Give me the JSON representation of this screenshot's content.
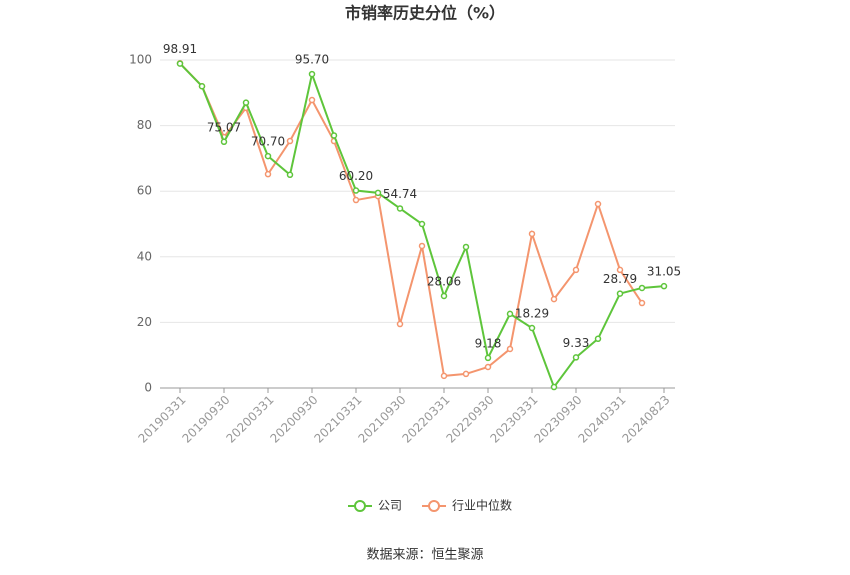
{
  "chart_data": {
    "type": "line",
    "title": "市销率历史分位（%）",
    "source": "数据来源：恒生聚源",
    "categories": [
      "20190331",
      null,
      "20190930",
      null,
      "20200331",
      null,
      "20200930",
      null,
      "20210331",
      null,
      "20210930",
      null,
      "20220331",
      null,
      "20220930",
      null,
      "20230331",
      null,
      "20230930",
      null,
      "20240331",
      null,
      "20240823"
    ],
    "series": [
      {
        "name": "公司",
        "color": "#5ec53b",
        "values": [
          98.91,
          92,
          75.07,
          87,
          70.7,
          65,
          95.7,
          77,
          60.2,
          59.5,
          54.74,
          50,
          28.06,
          43,
          9.18,
          22.6,
          18.29,
          0.3,
          9.33,
          15,
          28.79,
          30.5,
          31.05
        ],
        "value_labels": [
          "98.91",
          null,
          "75.07",
          null,
          "70.70",
          null,
          "95.70",
          null,
          "60.20",
          null,
          "54.74",
          null,
          "28.06",
          null,
          "9.18",
          null,
          "18.29",
          null,
          "9.33",
          null,
          "28.79",
          null,
          "31.05"
        ]
      },
      {
        "name": "行业中位数",
        "color": "#f4956e",
        "values": [
          99,
          92,
          76.5,
          85.4,
          65.2,
          75.3,
          87.8,
          75.3,
          57.3,
          58.5,
          19.5,
          43.3,
          3.7,
          4.3,
          6.4,
          11.9,
          47,
          27.1,
          36,
          56.1,
          36,
          25.9,
          null
        ]
      }
    ],
    "ylim": [
      0,
      100
    ],
    "yticks": [
      0,
      20,
      40,
      60,
      80,
      100
    ],
    "grid": true
  }
}
